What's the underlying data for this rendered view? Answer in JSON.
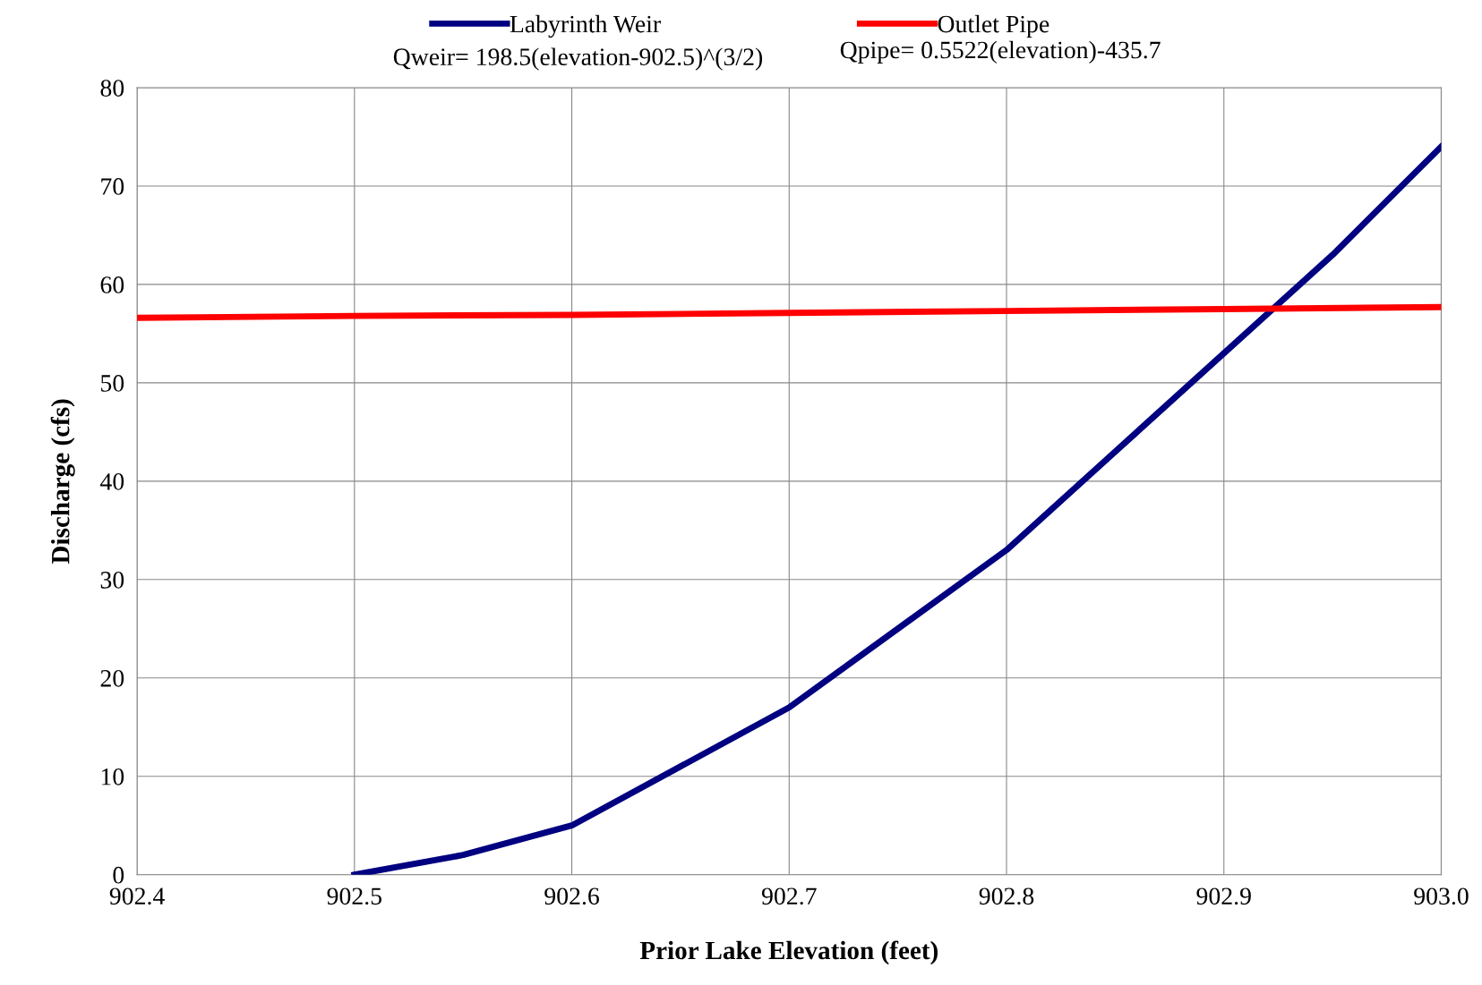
{
  "chart_data": {
    "type": "line",
    "xlabel": "Prior Lake Elevation (feet)",
    "ylabel": "Discharge (cfs)",
    "series": [
      {
        "name": "Labyrinth Weir",
        "color": "#000080",
        "x": [
          902.5,
          902.55,
          902.6,
          902.7,
          902.8,
          902.9,
          902.95,
          903.0
        ],
        "values": [
          0,
          2,
          5,
          17,
          33,
          53,
          63,
          74
        ]
      },
      {
        "name": "Outlet Pipe",
        "color": "#ff0000",
        "x": [
          902.4,
          902.5,
          902.6,
          902.7,
          902.8,
          902.9,
          903.0
        ],
        "values": [
          56.6,
          56.8,
          56.9,
          57.1,
          57.3,
          57.5,
          57.7
        ]
      }
    ],
    "annotations": [
      "Qweir= 198.5(elevation-902.5)^(3/2)",
      "Qpipe= 0.5522(elevation)-435.7"
    ],
    "xlim": [
      902.4,
      903.0
    ],
    "xticks": [
      {
        "value": 902.4,
        "label": "902.4"
      },
      {
        "value": 902.5,
        "label": "902.5"
      },
      {
        "value": 902.6,
        "label": "902.6"
      },
      {
        "value": 902.7,
        "label": "902.7"
      },
      {
        "value": 902.8,
        "label": "902.8"
      },
      {
        "value": 902.9,
        "label": "902.9"
      },
      {
        "value": 903.0,
        "label": "903.0"
      }
    ],
    "ylim": [
      0,
      80
    ],
    "yticks": [
      0,
      10,
      20,
      30,
      40,
      50,
      60,
      70,
      80
    ],
    "grid": true,
    "legend": "top",
    "marker": "none",
    "line_style": "solid"
  }
}
